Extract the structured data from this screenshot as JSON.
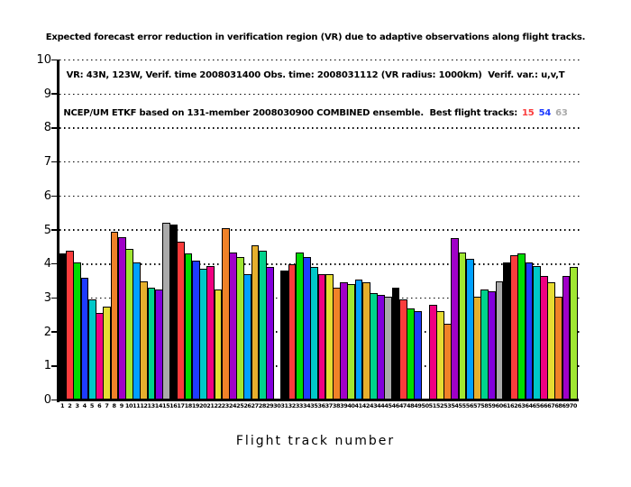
{
  "title": {
    "line1": "Expected forecast error reduction in verification region (VR) due to adaptive observations along flight tracks.",
    "line2": "VR: 43N, 123W, Verif. time 2008031400 Obs. time: 2008031112 (VR radius: 1000km)  Verif. var.: u,v,T",
    "line3_prefix": "NCEP/UM ETKF based on 131-member 2008030900 COMBINED ensemble.  Best flight tracks:",
    "best_tracks": [
      {
        "label": "15",
        "color": "#fa3c3c"
      },
      {
        "label": "54",
        "color": "#1e3cff"
      },
      {
        "label": "63",
        "color": "#aaaaaa"
      }
    ]
  },
  "chart_data": {
    "type": "bar",
    "title": "Expected forecast error reduction in verification region (VR) due to adaptive observations along flight tracks.",
    "xlabel": "Flight track number",
    "ylabel": "",
    "ylim": [
      0,
      10
    ],
    "yticks": [
      0,
      1,
      2,
      3,
      4,
      5,
      6,
      7,
      8,
      9,
      10
    ],
    "grid": "horizontal-dotted",
    "legend": "none",
    "categories": [
      "1",
      "2",
      "3",
      "4",
      "5",
      "6",
      "7",
      "8",
      "9",
      "10",
      "11",
      "12",
      "13",
      "14",
      "15",
      "16",
      "17",
      "18",
      "19",
      "20",
      "21",
      "22",
      "23",
      "24",
      "25",
      "26",
      "27",
      "28",
      "29",
      "30",
      "31",
      "32",
      "33",
      "34",
      "35",
      "36",
      "37",
      "38",
      "39",
      "40",
      "41",
      "42",
      "43",
      "44",
      "45",
      "46",
      "47",
      "48",
      "49",
      "50",
      "51",
      "52",
      "53",
      "54",
      "55",
      "56",
      "57",
      "58",
      "59",
      "60",
      "61",
      "62",
      "63",
      "64",
      "65",
      "66",
      "67",
      "68",
      "69",
      "70"
    ],
    "values": [
      4.3,
      4.4,
      4.05,
      3.6,
      2.95,
      2.55,
      2.75,
      4.95,
      4.8,
      4.45,
      4.05,
      3.5,
      3.3,
      3.25,
      5.2,
      5.15,
      4.65,
      4.3,
      4.1,
      3.85,
      3.95,
      3.25,
      5.05,
      4.35,
      4.2,
      3.7,
      4.55,
      4.4,
      3.9,
      0,
      3.8,
      4.0,
      4.35,
      4.2,
      3.9,
      3.7,
      3.7,
      3.3,
      3.45,
      3.4,
      3.55,
      3.45,
      3.15,
      3.1,
      3.05,
      3.3,
      2.95,
      2.7,
      2.6,
      0,
      2.8,
      2.6,
      2.25,
      4.75,
      4.35,
      4.15,
      3.05,
      3.25,
      3.2,
      3.5,
      4.05,
      4.25,
      4.3,
      4.05,
      3.95,
      3.65,
      3.45,
      3.05,
      3.65,
      3.9
    ],
    "palette_grads_15": [
      "#000000",
      "#fa3c3c",
      "#00dc00",
      "#1e3cff",
      "#00c8c8",
      "#f00082",
      "#e6dc32",
      "#f08228",
      "#a000c8",
      "#a0e632",
      "#00a0ff",
      "#e6af2d",
      "#00d28c",
      "#8200dc",
      "#aaaaaa"
    ],
    "color_rule": "bar i (0-based) filled with palette_grads_15[i % 15]",
    "zero_value_tracks": [
      "30",
      "50"
    ]
  }
}
